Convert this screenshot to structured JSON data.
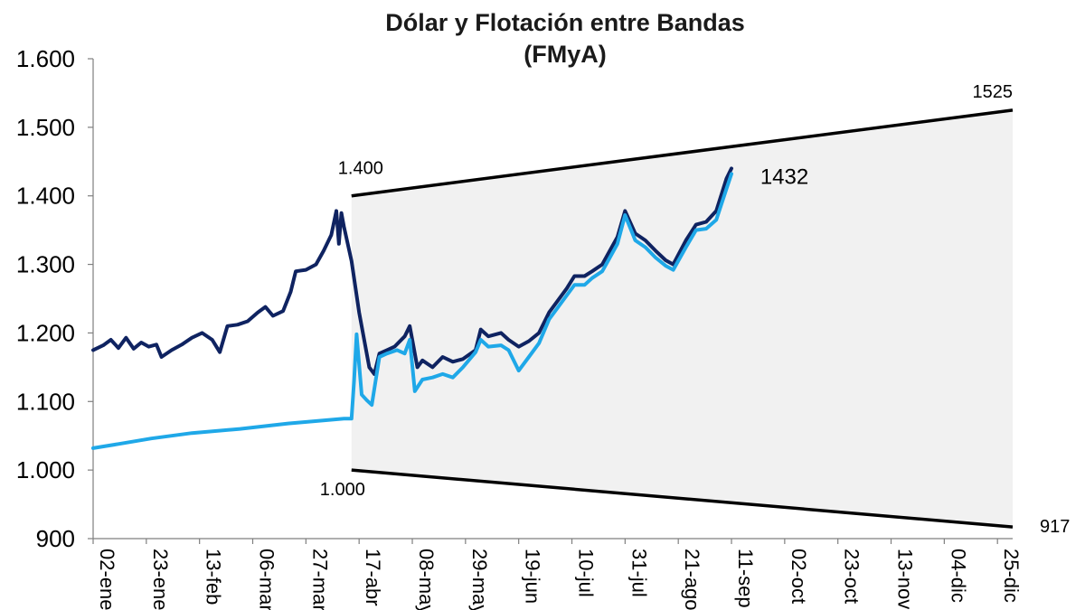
{
  "chart_data": {
    "type": "line",
    "title": "Dólar y Flotación entre Bandas",
    "subtitle": "(FMyA)",
    "xlabel": "",
    "ylabel": "",
    "ylim": [
      900,
      1600
    ],
    "y_ticks": [
      "900",
      "1.000",
      "1.100",
      "1.200",
      "1.300",
      "1.400",
      "1.500",
      "1.600"
    ],
    "x_ticks": [
      "02-ene",
      "23-ene",
      "13-feb",
      "06-mar",
      "27-mar",
      "17-abr",
      "08-may",
      "29-may",
      "19-jun",
      "10-jul",
      "31-jul",
      "21-ago",
      "11-sep",
      "02-oct",
      "23-oct",
      "13-nov",
      "04-dic",
      "25-dic"
    ],
    "x_tick_dates": [
      "2025-01-02",
      "2025-01-23",
      "2025-02-13",
      "2025-03-06",
      "2025-03-27",
      "2025-04-17",
      "2025-05-08",
      "2025-05-29",
      "2025-06-19",
      "2025-07-10",
      "2025-07-31",
      "2025-08-21",
      "2025-09-11",
      "2025-10-02",
      "2025-10-23",
      "2025-11-13",
      "2025-12-04",
      "2025-12-25"
    ],
    "x_range": [
      "2025-01-02",
      "2025-12-31"
    ],
    "grid": false,
    "bands": {
      "upper": [
        {
          "date": "2025-04-14",
          "value": 1400
        },
        {
          "date": "2025-12-31",
          "value": 1525
        }
      ],
      "lower": [
        {
          "date": "2025-04-14",
          "value": 1000
        },
        {
          "date": "2025-12-31",
          "value": 917
        }
      ],
      "fill_color": "#f1f1f1",
      "line_color": "#000000"
    },
    "annotations": [
      {
        "text": "1.400",
        "date": "2025-04-14",
        "value": 1400
      },
      {
        "text": "1.000",
        "date": "2025-04-14",
        "value": 1000
      },
      {
        "text": "1525",
        "date": "2025-12-31",
        "value": 1525
      },
      {
        "text": "917",
        "date": "2025-12-31",
        "value": 917
      },
      {
        "text": "1432",
        "date": "2025-09-12",
        "value": 1432
      }
    ],
    "series": [
      {
        "color": "#0f2361",
        "points": [
          [
            "2025-01-02",
            1175
          ],
          [
            "2025-01-06",
            1182
          ],
          [
            "2025-01-09",
            1190
          ],
          [
            "2025-01-12",
            1178
          ],
          [
            "2025-01-15",
            1193
          ],
          [
            "2025-01-18",
            1177
          ],
          [
            "2025-01-21",
            1186
          ],
          [
            "2025-01-24",
            1180
          ],
          [
            "2025-01-27",
            1183
          ],
          [
            "2025-01-29",
            1165
          ],
          [
            "2025-02-02",
            1175
          ],
          [
            "2025-02-06",
            1183
          ],
          [
            "2025-02-10",
            1193
          ],
          [
            "2025-02-14",
            1200
          ],
          [
            "2025-02-18",
            1190
          ],
          [
            "2025-02-21",
            1172
          ],
          [
            "2025-02-24",
            1210
          ],
          [
            "2025-02-28",
            1212
          ],
          [
            "2025-03-04",
            1217
          ],
          [
            "2025-03-08",
            1230
          ],
          [
            "2025-03-11",
            1238
          ],
          [
            "2025-03-14",
            1225
          ],
          [
            "2025-03-18",
            1232
          ],
          [
            "2025-03-21",
            1260
          ],
          [
            "2025-03-23",
            1290
          ],
          [
            "2025-03-27",
            1292
          ],
          [
            "2025-03-31",
            1300
          ],
          [
            "2025-04-03",
            1320
          ],
          [
            "2025-04-06",
            1343
          ],
          [
            "2025-04-08",
            1378
          ],
          [
            "2025-04-09",
            1330
          ],
          [
            "2025-04-10",
            1375
          ],
          [
            "2025-04-11",
            1355
          ],
          [
            "2025-04-14",
            1305
          ],
          [
            "2025-04-17",
            1230
          ],
          [
            "2025-04-21",
            1150
          ],
          [
            "2025-04-23",
            1140
          ],
          [
            "2025-04-25",
            1170
          ],
          [
            "2025-04-28",
            1175
          ],
          [
            "2025-05-01",
            1180
          ],
          [
            "2025-05-05",
            1195
          ],
          [
            "2025-05-07",
            1210
          ],
          [
            "2025-05-10",
            1150
          ],
          [
            "2025-05-12",
            1160
          ],
          [
            "2025-05-16",
            1150
          ],
          [
            "2025-05-20",
            1165
          ],
          [
            "2025-05-24",
            1158
          ],
          [
            "2025-05-28",
            1162
          ],
          [
            "2025-06-02",
            1175
          ],
          [
            "2025-06-04",
            1205
          ],
          [
            "2025-06-07",
            1195
          ],
          [
            "2025-06-12",
            1200
          ],
          [
            "2025-06-15",
            1190
          ],
          [
            "2025-06-19",
            1180
          ],
          [
            "2025-06-23",
            1188
          ],
          [
            "2025-06-27",
            1200
          ],
          [
            "2025-07-01",
            1230
          ],
          [
            "2025-07-04",
            1245
          ],
          [
            "2025-07-08",
            1265
          ],
          [
            "2025-07-11",
            1283
          ],
          [
            "2025-07-15",
            1283
          ],
          [
            "2025-07-18",
            1290
          ],
          [
            "2025-07-22",
            1300
          ],
          [
            "2025-07-25",
            1320
          ],
          [
            "2025-07-28",
            1340
          ],
          [
            "2025-07-31",
            1378
          ],
          [
            "2025-08-04",
            1345
          ],
          [
            "2025-08-08",
            1335
          ],
          [
            "2025-08-12",
            1320
          ],
          [
            "2025-08-16",
            1306
          ],
          [
            "2025-08-19",
            1300
          ],
          [
            "2025-08-24",
            1335
          ],
          [
            "2025-08-28",
            1358
          ],
          [
            "2025-09-01",
            1362
          ],
          [
            "2025-09-05",
            1378
          ],
          [
            "2025-09-09",
            1425
          ],
          [
            "2025-09-11",
            1440
          ]
        ]
      },
      {
        "color": "#1fa8e8",
        "points": [
          [
            "2025-01-02",
            1032
          ],
          [
            "2025-01-12",
            1038
          ],
          [
            "2025-01-25",
            1046
          ],
          [
            "2025-02-10",
            1054
          ],
          [
            "2025-03-01",
            1060
          ],
          [
            "2025-03-20",
            1068
          ],
          [
            "2025-04-11",
            1075
          ],
          [
            "2025-04-14",
            1075
          ],
          [
            "2025-04-15",
            1130
          ],
          [
            "2025-04-16",
            1198
          ],
          [
            "2025-04-18",
            1110
          ],
          [
            "2025-04-20",
            1102
          ],
          [
            "2025-04-22",
            1095
          ],
          [
            "2025-04-25",
            1165
          ],
          [
            "2025-04-28",
            1170
          ],
          [
            "2025-05-02",
            1175
          ],
          [
            "2025-05-05",
            1170
          ],
          [
            "2025-05-07",
            1190
          ],
          [
            "2025-05-09",
            1115
          ],
          [
            "2025-05-12",
            1132
          ],
          [
            "2025-05-16",
            1135
          ],
          [
            "2025-05-20",
            1140
          ],
          [
            "2025-05-24",
            1135
          ],
          [
            "2025-05-28",
            1150
          ],
          [
            "2025-06-02",
            1172
          ],
          [
            "2025-06-04",
            1190
          ],
          [
            "2025-06-07",
            1180
          ],
          [
            "2025-06-12",
            1182
          ],
          [
            "2025-06-15",
            1175
          ],
          [
            "2025-06-19",
            1145
          ],
          [
            "2025-06-23",
            1165
          ],
          [
            "2025-06-27",
            1185
          ],
          [
            "2025-07-01",
            1220
          ],
          [
            "2025-07-04",
            1235
          ],
          [
            "2025-07-08",
            1255
          ],
          [
            "2025-07-11",
            1270
          ],
          [
            "2025-07-15",
            1270
          ],
          [
            "2025-07-18",
            1280
          ],
          [
            "2025-07-22",
            1290
          ],
          [
            "2025-07-25",
            1310
          ],
          [
            "2025-07-28",
            1330
          ],
          [
            "2025-07-31",
            1372
          ],
          [
            "2025-08-04",
            1335
          ],
          [
            "2025-08-08",
            1325
          ],
          [
            "2025-08-12",
            1310
          ],
          [
            "2025-08-16",
            1298
          ],
          [
            "2025-08-19",
            1292
          ],
          [
            "2025-08-24",
            1325
          ],
          [
            "2025-08-28",
            1350
          ],
          [
            "2025-09-01",
            1352
          ],
          [
            "2025-09-05",
            1365
          ],
          [
            "2025-09-09",
            1410
          ],
          [
            "2025-09-11",
            1432
          ]
        ]
      }
    ]
  }
}
